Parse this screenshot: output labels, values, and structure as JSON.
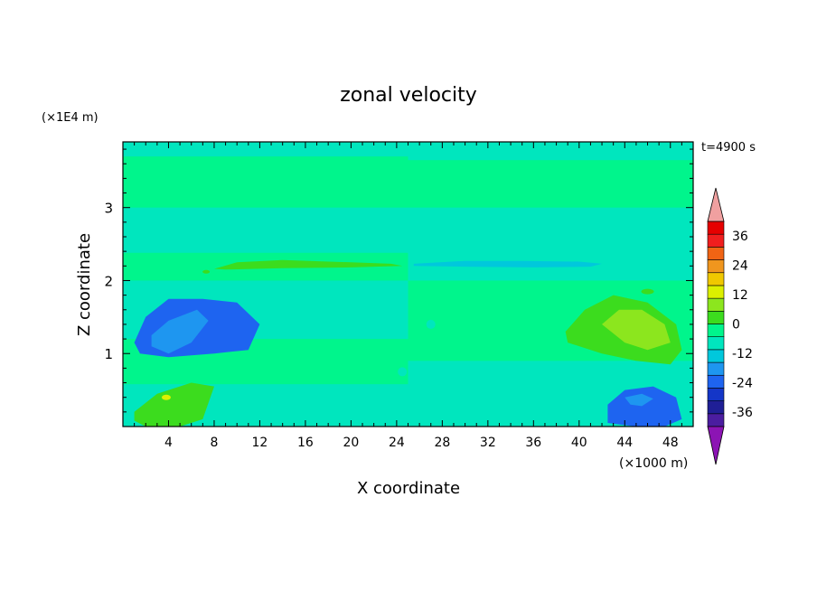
{
  "chart_data": {
    "type": "heatmap",
    "title": "zonal velocity",
    "xlabel": "X coordinate",
    "ylabel": "Z coordinate",
    "x_unit_label": "(×1000 m)",
    "y_unit_label": "(×1E4 m)",
    "time_label": "t=4900 s",
    "xlim": [
      0,
      50
    ],
    "ylim": [
      0,
      0.39
    ],
    "x_ticks": [
      4,
      8,
      12,
      16,
      20,
      24,
      28,
      32,
      36,
      40,
      44,
      48
    ],
    "x_tick_labels": [
      "4",
      "8",
      "12",
      "16",
      "20",
      "24",
      "28",
      "32",
      "36",
      "40",
      "44",
      "48"
    ],
    "y_ticks": [
      0.1,
      0.2,
      0.3
    ],
    "y_tick_labels": [
      "1",
      "2",
      "3"
    ],
    "colorbar": {
      "levels": [
        -42,
        -36,
        -30,
        -24,
        -18,
        -12,
        -6,
        0,
        6,
        12,
        18,
        24,
        30,
        36,
        42
      ],
      "colors": [
        "#4b1da0",
        "#1f1f96",
        "#1436c8",
        "#1e64f0",
        "#1e96f0",
        "#00c8dc",
        "#00e6be",
        "#00f58c",
        "#3cdc1e",
        "#8ce61e",
        "#dcf000",
        "#f0c800",
        "#f0961e",
        "#f06414",
        "#f01e1e",
        "#e60000"
      ],
      "labels": [
        "36",
        "24",
        "12",
        "0",
        "-12",
        "-24",
        "-36"
      ],
      "label_values": [
        36,
        24,
        12,
        0,
        -12,
        -24,
        -36
      ],
      "under_color": "#8c14b4",
      "over_color": "#f0a0a0"
    },
    "field_regions": [
      {
        "level": 3,
        "x": [
          1,
          2,
          4,
          7,
          10,
          12,
          11,
          8,
          4,
          1.5
        ],
        "z": [
          0.115,
          0.15,
          0.175,
          0.175,
          0.17,
          0.14,
          0.105,
          0.1,
          0.095,
          0.1
        ]
      },
      {
        "level": 4,
        "x": [
          2.5,
          4,
          6.5,
          7.5,
          6,
          4,
          2.5
        ],
        "z": [
          0.125,
          0.145,
          0.16,
          0.145,
          0.115,
          0.1,
          0.11
        ]
      },
      {
        "level": 8,
        "x": [
          1,
          3,
          6,
          8,
          7,
          5,
          2,
          1
        ],
        "z": [
          0.02,
          0.045,
          0.06,
          0.055,
          0.01,
          0,
          0,
          0.008
        ]
      },
      {
        "level": 8,
        "x": [
          8,
          10,
          14,
          20,
          23.5,
          24.5,
          20,
          14,
          9
        ],
        "z": [
          0.216,
          0.225,
          0.228,
          0.225,
          0.223,
          0.22,
          0.218,
          0.217,
          0.215
        ]
      },
      {
        "level": 8,
        "x": [
          38.8,
          40.5,
          43,
          46,
          48.5,
          49,
          48,
          45,
          42,
          39
        ],
        "z": [
          0.13,
          0.16,
          0.18,
          0.17,
          0.14,
          0.105,
          0.085,
          0.09,
          0.1,
          0.115
        ]
      },
      {
        "level": 9,
        "x": [
          42,
          43.5,
          45.5,
          47.5,
          48,
          46,
          44
        ],
        "z": [
          0.14,
          0.16,
          0.16,
          0.14,
          0.115,
          0.105,
          0.115
        ]
      },
      {
        "level": 3,
        "x": [
          42.5,
          44,
          46.5,
          48.5,
          49,
          47.5,
          45,
          42.5
        ],
        "z": [
          0.03,
          0.05,
          0.055,
          0.04,
          0.01,
          0,
          0,
          0.005
        ]
      },
      {
        "level": 4,
        "x": [
          44,
          45.5,
          46.5,
          45.5,
          44.5
        ],
        "z": [
          0.04,
          0.045,
          0.038,
          0.028,
          0.03
        ]
      },
      {
        "level": 5,
        "x": [
          25.5,
          30,
          35,
          40,
          42,
          41,
          36,
          30,
          25.5
        ],
        "z": [
          0.223,
          0.227,
          0.227,
          0.226,
          0.223,
          0.219,
          0.218,
          0.219,
          0.22
        ]
      }
    ]
  }
}
